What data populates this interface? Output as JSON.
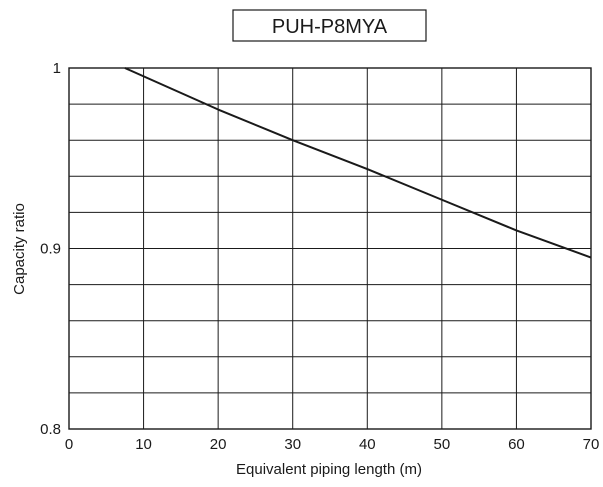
{
  "chart_data": {
    "type": "line",
    "title": "PUH-P8MYA",
    "xlabel": "Equivalent piping length (m)",
    "ylabel": "Capacity ratio",
    "xlim": [
      0,
      70
    ],
    "ylim": [
      0.8,
      1.0
    ],
    "x_ticks": [
      0,
      10,
      20,
      30,
      40,
      50,
      60,
      70
    ],
    "x_tick_labels": [
      "0",
      "10",
      "20",
      "30",
      "40",
      "50",
      "60",
      "70"
    ],
    "y_ticks": [
      0.8,
      0.9,
      1.0
    ],
    "y_tick_labels": [
      "0.8",
      "0.9",
      "1"
    ],
    "y_grid_step": 0.02,
    "grid": true,
    "series": [
      {
        "x": [
          7.5,
          20,
          30,
          40,
          50,
          60,
          70
        ],
        "y": [
          1.0,
          0.977,
          0.96,
          0.944,
          0.927,
          0.91,
          0.895
        ]
      }
    ],
    "colors": {
      "line": "#1a1a1a",
      "grid": "#1a1a1a",
      "frame": "#1a1a1a"
    }
  }
}
